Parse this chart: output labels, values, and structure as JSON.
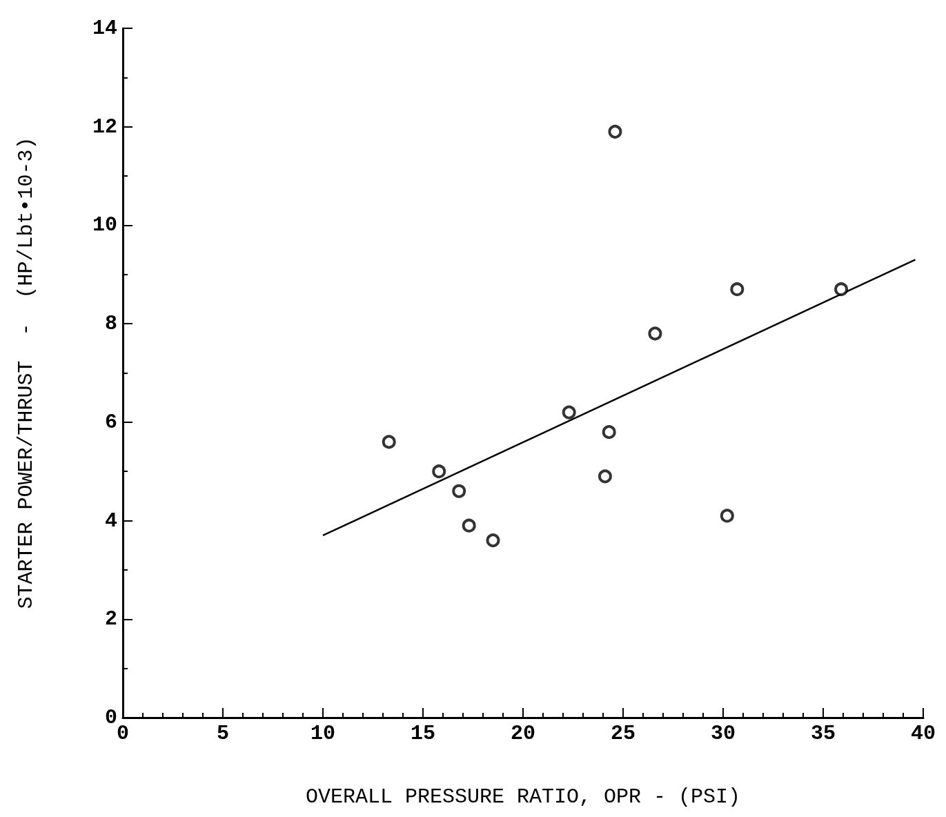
{
  "chart_data": {
    "type": "scatter",
    "xlabel": "OVERALL PRESSURE RATIO, OPR - (PSI)",
    "ylabel": "STARTER POWER/THRUST  -  (HP/Lbt•10-3)",
    "xlim": [
      0,
      40
    ],
    "xticks": [
      0,
      5,
      10,
      15,
      20,
      25,
      30,
      35,
      40
    ],
    "ylim": [
      0,
      14
    ],
    "yticks": [
      0,
      2,
      4,
      6,
      8,
      10,
      12,
      14
    ],
    "grid": false,
    "marker": "circle",
    "series": [
      {
        "type": "scatter",
        "color": "#000000",
        "x": [
          13.3,
          15.8,
          16.8,
          17.3,
          18.5,
          22.3,
          24.1,
          24.3,
          24.6,
          26.6,
          30.2,
          30.7,
          35.9
        ],
        "values": [
          5.6,
          5.0,
          4.6,
          3.9,
          3.6,
          6.2,
          4.9,
          5.8,
          11.9,
          7.8,
          4.1,
          8.7,
          8.7
        ]
      },
      {
        "type": "line",
        "color": "#000000",
        "line_style": "solid",
        "marker": "none",
        "x": [
          10.0,
          39.6
        ],
        "values": [
          3.7,
          9.3
        ]
      }
    ]
  }
}
